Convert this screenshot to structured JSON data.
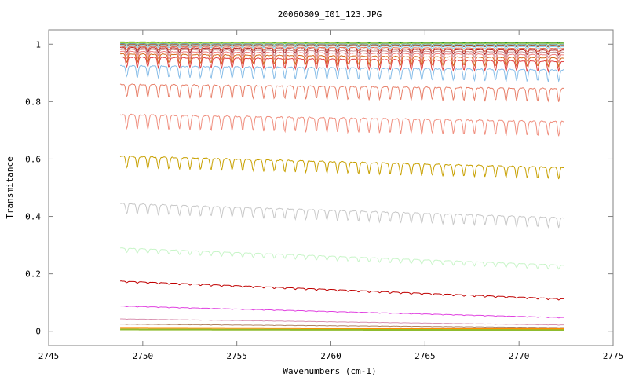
{
  "chart_data": {
    "type": "line",
    "title": "20060809_I01_123.JPG",
    "xlabel": "Wavenumbers (cm-1)",
    "ylabel": "Transmitance",
    "xlim": [
      2745,
      2775
    ],
    "ylim": [
      -0.05,
      1.05
    ],
    "x_ticks": [
      "2745",
      "2750",
      "2755",
      "2760",
      "2765",
      "2770",
      "2775"
    ],
    "y_ticks": [
      "0",
      "0.2",
      "0.4",
      "0.6",
      "0.8",
      "1"
    ],
    "x_tick_values": [
      2745,
      2750,
      2755,
      2760,
      2765,
      2770,
      2775
    ],
    "y_tick_values": [
      0,
      0.2,
      0.4,
      0.6,
      0.8,
      1.0
    ],
    "x_range": [
      2748.8,
      2772.4
    ],
    "grid": false,
    "legend": "none",
    "series": [
      {
        "color": "#228b22",
        "start": 1.008,
        "end": 1.006,
        "depth": 0.002
      },
      {
        "color": "#9acd32",
        "start": 1.005,
        "end": 1.003,
        "depth": 0.002
      },
      {
        "color": "#5f9ea0",
        "start": 1.002,
        "end": 1.0,
        "depth": 0.004
      },
      {
        "color": "#a0522d",
        "start": 0.999,
        "end": 0.996,
        "depth": 0.006
      },
      {
        "color": "#87ceeb",
        "start": 0.996,
        "end": 0.991,
        "depth": 0.008
      },
      {
        "color": "#e07050",
        "start": 0.992,
        "end": 0.985,
        "depth": 0.012
      },
      {
        "color": "#b22222",
        "start": 0.988,
        "end": 0.979,
        "depth": 0.016
      },
      {
        "color": "#c89090",
        "start": 0.982,
        "end": 0.972,
        "depth": 0.02
      },
      {
        "color": "#f08080",
        "start": 0.975,
        "end": 0.963,
        "depth": 0.025
      },
      {
        "color": "#d2691e",
        "start": 0.966,
        "end": 0.952,
        "depth": 0.03
      },
      {
        "color": "#e04040",
        "start": 0.955,
        "end": 0.94,
        "depth": 0.035
      },
      {
        "color": "#87bde8",
        "start": 0.925,
        "end": 0.91,
        "depth": 0.04
      },
      {
        "color": "#e8806a",
        "start": 0.86,
        "end": 0.845,
        "depth": 0.045
      },
      {
        "color": "#f09080",
        "start": 0.755,
        "end": 0.73,
        "depth": 0.05
      },
      {
        "color": "#c8a000",
        "start": 0.61,
        "end": 0.57,
        "depth": 0.04
      },
      {
        "color": "#c8c8c8",
        "start": 0.445,
        "end": 0.395,
        "depth": 0.035
      },
      {
        "color": "#c8f5c8",
        "start": 0.29,
        "end": 0.23,
        "depth": 0.015
      },
      {
        "color": "#c00000",
        "start": 0.175,
        "end": 0.113,
        "depth": 0.005
      },
      {
        "color": "#e040e0",
        "start": 0.088,
        "end": 0.048,
        "depth": 0.002
      },
      {
        "color": "#d890b0",
        "start": 0.043,
        "end": 0.022,
        "depth": 0.001
      },
      {
        "color": "#b08060",
        "start": 0.025,
        "end": 0.013,
        "depth": 0.001
      },
      {
        "color": "#ff8c00",
        "start": 0.012,
        "end": 0.008,
        "depth": 0.0
      },
      {
        "color": "#8fbc2f",
        "start": 0.006,
        "end": 0.004,
        "depth": 0.0
      }
    ]
  }
}
